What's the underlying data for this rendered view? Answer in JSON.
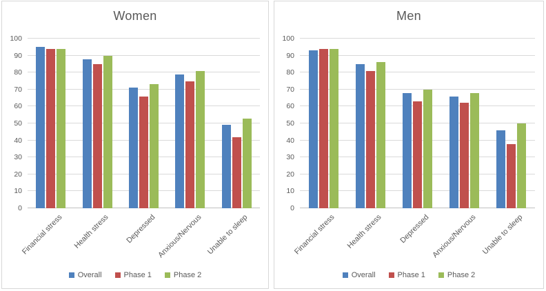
{
  "chart_data": [
    {
      "type": "bar",
      "title": "Women",
      "categories": [
        "Financial stress",
        "Health stress",
        "Depressed",
        "Anxious/Nervous",
        "Unable to sleep"
      ],
      "series": [
        {
          "name": "Overall",
          "color": "#4F81BD",
          "values": [
            95,
            88,
            71,
            79,
            49
          ]
        },
        {
          "name": "Phase 1",
          "color": "#C0504D",
          "values": [
            94,
            85,
            66,
            75,
            42
          ]
        },
        {
          "name": "Phase 2",
          "color": "#9BBB59",
          "values": [
            94,
            90,
            73,
            81,
            53
          ]
        }
      ],
      "ylim": [
        0,
        100
      ],
      "ytick_step": 10,
      "ytick_labels": [
        "0",
        "10",
        "20",
        "30",
        "40",
        "50",
        "60",
        "70",
        "80",
        "90",
        "100"
      ],
      "grid": true,
      "legend_position": "bottom"
    },
    {
      "type": "bar",
      "title": "Men",
      "categories": [
        "Financial stress",
        "Health stress",
        "Depressed",
        "Anxious/Nervous",
        "Unable to sleep"
      ],
      "series": [
        {
          "name": "Overall",
          "color": "#4F81BD",
          "values": [
            93,
            85,
            68,
            66,
            46
          ]
        },
        {
          "name": "Phase 1",
          "color": "#C0504D",
          "values": [
            94,
            81,
            63,
            62,
            38
          ]
        },
        {
          "name": "Phase 2",
          "color": "#9BBB59",
          "values": [
            94,
            86,
            70,
            68,
            50
          ]
        }
      ],
      "ylim": [
        0,
        100
      ],
      "ytick_step": 10,
      "ytick_labels": [
        "0",
        "10",
        "20",
        "30",
        "40",
        "50",
        "60",
        "70",
        "80",
        "90",
        "100"
      ],
      "grid": true,
      "legend_position": "bottom"
    }
  ],
  "styles": {
    "text_color": "#595959",
    "gridline_color": "#d9d9d9",
    "axis_line_color": "#c0c0c0",
    "panel_border_color": "#d7d7d7"
  }
}
